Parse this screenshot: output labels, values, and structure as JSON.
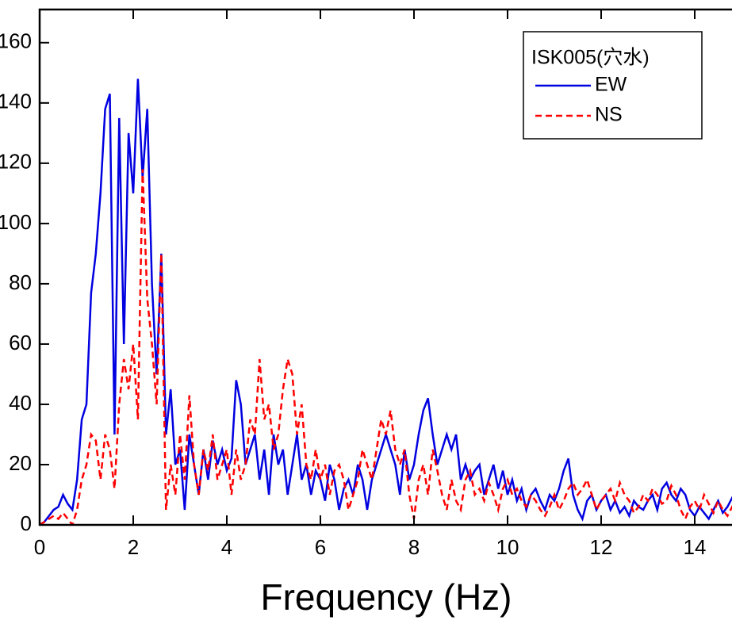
{
  "chart_data": {
    "type": "line",
    "xlabel": "Frequency (Hz)",
    "legend_title": "ISK005(穴水)",
    "legend": "upper right",
    "xlim": [
      0,
      15
    ],
    "xticks": [
      0,
      2,
      4,
      6,
      8,
      10,
      12,
      14
    ],
    "ylim": [
      0,
      171
    ],
    "yticks": [
      0,
      20,
      40,
      60,
      80,
      100,
      120,
      140,
      160
    ],
    "x": [
      0,
      0.1,
      0.2,
      0.3,
      0.4,
      0.5,
      0.6,
      0.7,
      0.8,
      0.9,
      1,
      1.1,
      1.2,
      1.3,
      1.4,
      1.5,
      1.6,
      1.7,
      1.8,
      1.9,
      2,
      2.1,
      2.2,
      2.3,
      2.4,
      2.5,
      2.6,
      2.7,
      2.8,
      2.9,
      3,
      3.1,
      3.2,
      3.3,
      3.4,
      3.5,
      3.6,
      3.7,
      3.8,
      3.9,
      4,
      4.1,
      4.2,
      4.3,
      4.4,
      4.5,
      4.6,
      4.7,
      4.8,
      4.9,
      5,
      5.1,
      5.2,
      5.3,
      5.4,
      5.5,
      5.6,
      5.7,
      5.8,
      5.9,
      6,
      6.1,
      6.2,
      6.3,
      6.4,
      6.5,
      6.6,
      6.7,
      6.8,
      6.9,
      7,
      7.1,
      7.2,
      7.3,
      7.4,
      7.5,
      7.6,
      7.7,
      7.8,
      7.9,
      8,
      8.1,
      8.2,
      8.3,
      8.4,
      8.5,
      8.6,
      8.7,
      8.8,
      8.9,
      9,
      9.1,
      9.2,
      9.3,
      9.4,
      9.5,
      9.6,
      9.7,
      9.8,
      9.9,
      10,
      10.1,
      10.2,
      10.3,
      10.4,
      10.5,
      10.6,
      10.7,
      10.8,
      10.9,
      11,
      11.1,
      11.2,
      11.3,
      11.4,
      11.5,
      11.6,
      11.7,
      11.8,
      11.9,
      12,
      12.1,
      12.2,
      12.3,
      12.4,
      12.5,
      12.6,
      12.7,
      12.8,
      12.9,
      13,
      13.1,
      13.2,
      13.3,
      13.4,
      13.5,
      13.6,
      13.7,
      13.8,
      13.9,
      14,
      14.1,
      14.2,
      14.3,
      14.4,
      14.5,
      14.6,
      14.7,
      14.8,
      14.9,
      15
    ],
    "series": [
      {
        "name": "EW",
        "color": "#0000e0",
        "dash": "solid",
        "values": [
          0,
          1,
          3,
          5,
          6,
          10,
          7,
          5,
          15,
          35,
          40,
          77,
          90,
          110,
          138,
          143,
          30,
          135,
          60,
          130,
          110,
          148,
          115,
          138,
          80,
          50,
          90,
          30,
          45,
          20,
          25,
          5,
          30,
          20,
          10,
          25,
          15,
          28,
          20,
          25,
          18,
          22,
          48,
          40,
          20,
          25,
          30,
          15,
          25,
          10,
          30,
          20,
          25,
          10,
          20,
          30,
          15,
          20,
          10,
          18,
          15,
          8,
          20,
          15,
          5,
          12,
          15,
          10,
          20,
          15,
          5,
          15,
          20,
          25,
          30,
          25,
          20,
          10,
          25,
          15,
          20,
          30,
          38,
          42,
          30,
          20,
          25,
          30,
          25,
          30,
          15,
          20,
          15,
          18,
          20,
          10,
          15,
          20,
          12,
          18,
          10,
          15,
          8,
          12,
          5,
          10,
          12,
          8,
          5,
          10,
          8,
          12,
          18,
          22,
          10,
          5,
          2,
          8,
          10,
          5,
          8,
          10,
          5,
          8,
          4,
          6,
          3,
          8,
          6,
          5,
          8,
          10,
          5,
          12,
          14,
          10,
          8,
          12,
          10,
          5,
          3,
          6,
          4,
          2,
          5,
          8,
          4,
          6,
          9,
          7,
          5
        ]
      },
      {
        "name": "NS",
        "color": "#ff0000",
        "dash": "dashed",
        "values": [
          0,
          1,
          2,
          3,
          2,
          4,
          2,
          0,
          5,
          15,
          20,
          30,
          28,
          15,
          30,
          25,
          12,
          40,
          55,
          45,
          60,
          35,
          118,
          75,
          60,
          40,
          90,
          5,
          20,
          10,
          30,
          15,
          43,
          20,
          10,
          25,
          18,
          30,
          15,
          20,
          25,
          10,
          25,
          15,
          20,
          35,
          30,
          55,
          35,
          40,
          25,
          30,
          45,
          55,
          50,
          30,
          40,
          20,
          15,
          25,
          15,
          20,
          10,
          18,
          20,
          15,
          5,
          10,
          15,
          25,
          20,
          15,
          25,
          35,
          30,
          38,
          25,
          20,
          25,
          10,
          2,
          15,
          20,
          10,
          25,
          18,
          10,
          5,
          15,
          8,
          5,
          15,
          18,
          10,
          12,
          8,
          14,
          10,
          5,
          12,
          15,
          10,
          12,
          8,
          6,
          10,
          8,
          5,
          3,
          6,
          10,
          5,
          8,
          12,
          14,
          10,
          12,
          15,
          10,
          5,
          8,
          10,
          12,
          8,
          14,
          10,
          8,
          4,
          6,
          10,
          8,
          12,
          10,
          7,
          8,
          13,
          10,
          5,
          2,
          6,
          8,
          5,
          10,
          7,
          4,
          8,
          5,
          3,
          6,
          4,
          5
        ]
      }
    ]
  }
}
